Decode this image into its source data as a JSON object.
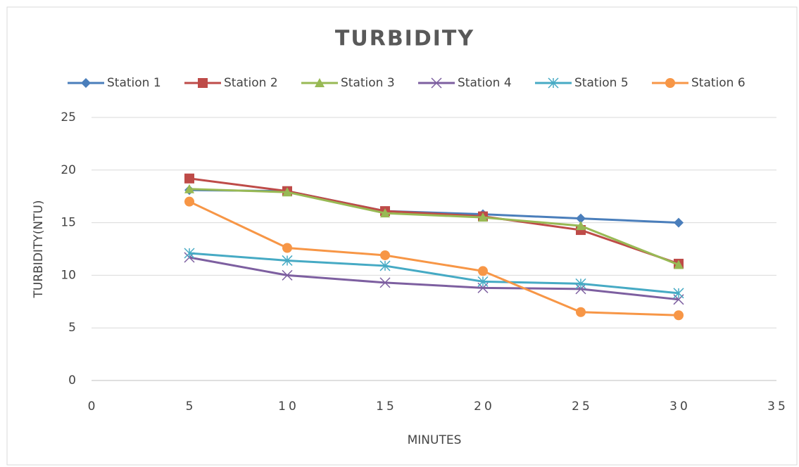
{
  "chart_data": {
    "type": "line",
    "title": "TURBIDITY",
    "x_label": "MINUTES",
    "y_label": "TURBIDITY(NTU)",
    "x": [
      5,
      10,
      15,
      20,
      25,
      30
    ],
    "series": [
      {
        "name": "Station 1",
        "color": "#4a7ebb",
        "marker": "diamond",
        "values": [
          18.1,
          18.0,
          16.1,
          15.8,
          15.4,
          15.0
        ]
      },
      {
        "name": "Station 2",
        "color": "#be4b48",
        "marker": "square",
        "values": [
          19.2,
          18.0,
          16.1,
          15.6,
          14.3,
          11.1
        ]
      },
      {
        "name": "Station 3",
        "color": "#98b954",
        "marker": "triangle",
        "values": [
          18.2,
          17.9,
          15.9,
          15.5,
          14.7,
          11.0
        ]
      },
      {
        "name": "Station 4",
        "color": "#7d5fa0",
        "marker": "x",
        "values": [
          11.7,
          10.0,
          9.3,
          8.8,
          8.7,
          7.7
        ]
      },
      {
        "name": "Station 5",
        "color": "#46aac4",
        "marker": "star",
        "values": [
          12.1,
          11.4,
          10.9,
          9.4,
          9.2,
          8.3
        ]
      },
      {
        "name": "Station 6",
        "color": "#f79646",
        "marker": "circle",
        "values": [
          17.0,
          12.6,
          11.9,
          10.4,
          6.5,
          6.2
        ]
      }
    ],
    "xlim": [
      0,
      35
    ],
    "xticks": [
      0,
      5,
      10,
      15,
      20,
      25,
      30,
      35
    ],
    "ylim": [
      0,
      25
    ],
    "yticks": [
      0,
      5,
      10,
      15,
      20,
      25
    ],
    "grid": true,
    "legend": "top"
  }
}
